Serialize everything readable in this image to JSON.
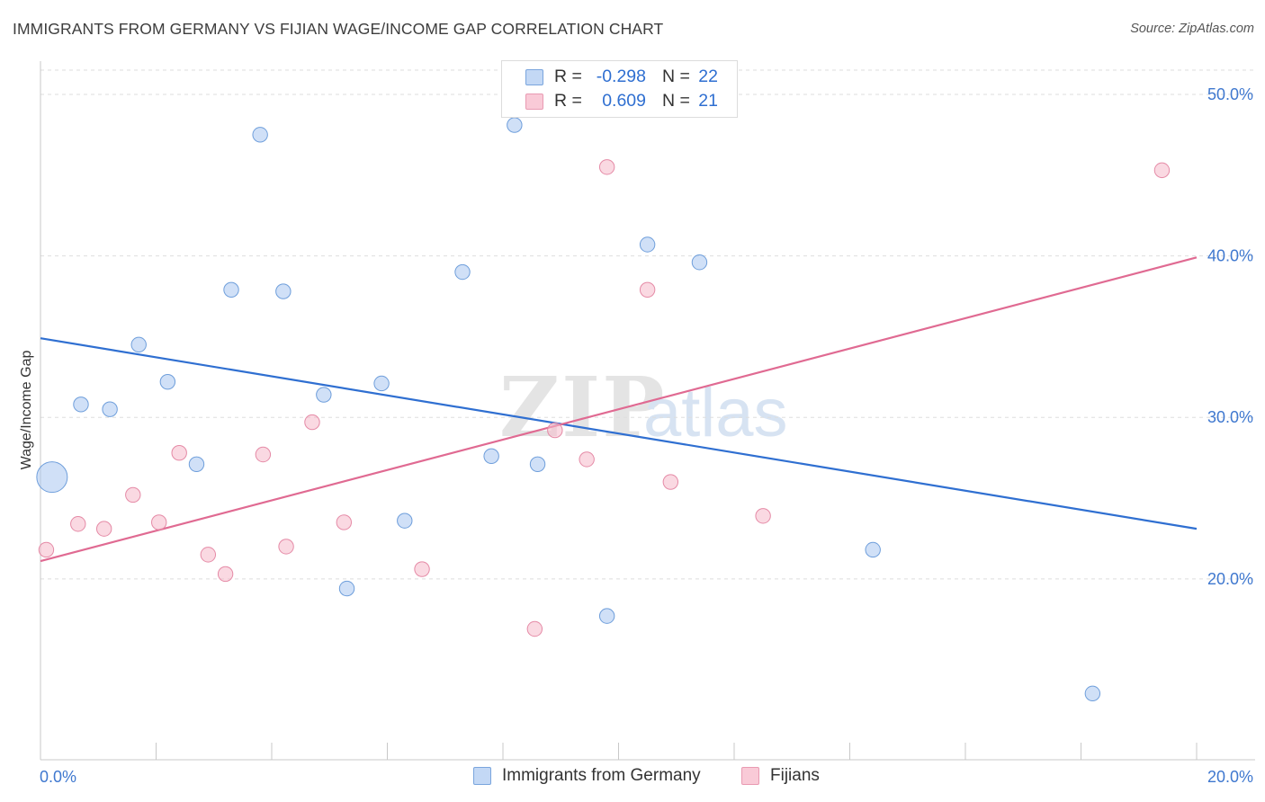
{
  "chart_data": {
    "type": "scatter",
    "title": "IMMIGRANTS FROM GERMANY VS FIJIAN WAGE/INCOME GAP CORRELATION CHART",
    "source": "Source: ZipAtlas.com",
    "xlabel": "",
    "ylabel": "Wage/Income Gap",
    "xlim": [
      0,
      20
    ],
    "ylim": [
      8.8,
      51.5
    ],
    "x_tick_labels": [
      {
        "value": 0,
        "label": "0.0%"
      },
      {
        "value": 20,
        "label": "20.0%"
      }
    ],
    "y_tick_labels": [
      {
        "value": 20,
        "label": "20.0%"
      },
      {
        "value": 30,
        "label": "30.0%"
      },
      {
        "value": 40,
        "label": "40.0%"
      },
      {
        "value": 50,
        "label": "50.0%"
      }
    ],
    "grid": true,
    "watermark": {
      "bold": "ZIP",
      "light": "atlas"
    },
    "series": [
      {
        "name": "Immigrants from Germany",
        "color": "#a9c7f0",
        "stroke": "#6e9edb",
        "line_color": "#2f6fd1",
        "R": "-0.298",
        "N": "22",
        "trend": [
          [
            0,
            34.9
          ],
          [
            20,
            23.1
          ]
        ],
        "points": [
          {
            "x": 0.2,
            "y": 26.3,
            "big": true
          },
          {
            "x": 0.7,
            "y": 30.8
          },
          {
            "x": 1.2,
            "y": 30.5
          },
          {
            "x": 1.7,
            "y": 34.5
          },
          {
            "x": 2.2,
            "y": 32.2
          },
          {
            "x": 2.7,
            "y": 27.1
          },
          {
            "x": 3.3,
            "y": 37.9
          },
          {
            "x": 3.8,
            "y": 47.5
          },
          {
            "x": 4.2,
            "y": 37.8
          },
          {
            "x": 4.9,
            "y": 31.4
          },
          {
            "x": 5.3,
            "y": 19.4
          },
          {
            "x": 5.9,
            "y": 32.1
          },
          {
            "x": 6.3,
            "y": 23.6
          },
          {
            "x": 7.3,
            "y": 39.0
          },
          {
            "x": 7.8,
            "y": 27.6
          },
          {
            "x": 8.2,
            "y": 48.1
          },
          {
            "x": 8.6,
            "y": 27.1
          },
          {
            "x": 9.8,
            "y": 17.7
          },
          {
            "x": 10.5,
            "y": 40.7
          },
          {
            "x": 11.4,
            "y": 39.6
          },
          {
            "x": 14.4,
            "y": 21.8
          },
          {
            "x": 18.2,
            "y": 12.9
          }
        ]
      },
      {
        "name": "Fijians",
        "color": "#f6b9ca",
        "stroke": "#e58aa6",
        "line_color": "#e06a92",
        "R": "0.609",
        "N": "21",
        "trend": [
          [
            0,
            21.1
          ],
          [
            20,
            39.9
          ]
        ],
        "points": [
          {
            "x": 0.1,
            "y": 21.8
          },
          {
            "x": 0.65,
            "y": 23.4
          },
          {
            "x": 1.1,
            "y": 23.1
          },
          {
            "x": 1.6,
            "y": 25.2
          },
          {
            "x": 2.05,
            "y": 23.5
          },
          {
            "x": 2.4,
            "y": 27.8
          },
          {
            "x": 2.9,
            "y": 21.5
          },
          {
            "x": 3.2,
            "y": 20.3
          },
          {
            "x": 3.85,
            "y": 27.7
          },
          {
            "x": 4.25,
            "y": 22.0
          },
          {
            "x": 4.7,
            "y": 29.7
          },
          {
            "x": 5.25,
            "y": 23.5
          },
          {
            "x": 6.6,
            "y": 20.6
          },
          {
            "x": 8.55,
            "y": 16.9
          },
          {
            "x": 8.9,
            "y": 29.2
          },
          {
            "x": 9.45,
            "y": 27.4
          },
          {
            "x": 9.8,
            "y": 45.5
          },
          {
            "x": 10.5,
            "y": 37.9
          },
          {
            "x": 10.9,
            "y": 26.0
          },
          {
            "x": 12.5,
            "y": 23.9
          },
          {
            "x": 19.4,
            "y": 45.3
          }
        ]
      }
    ]
  }
}
